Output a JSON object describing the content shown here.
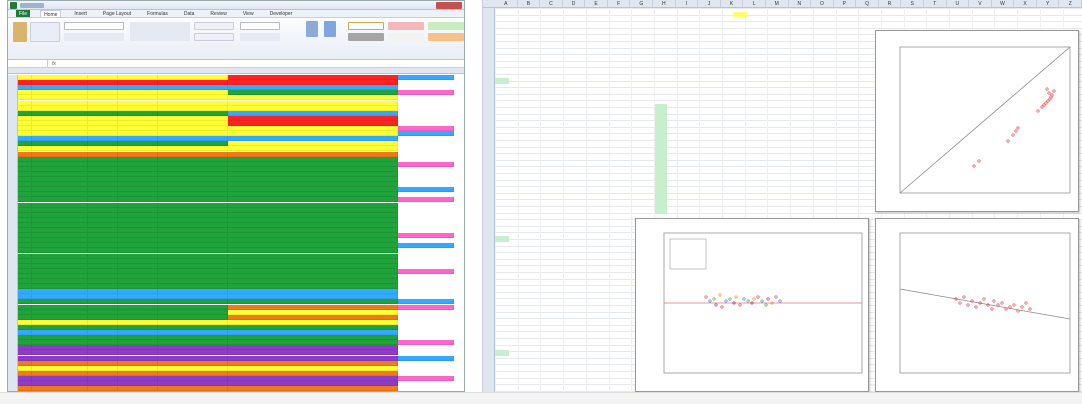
{
  "left": {
    "window_title": "",
    "ribbon_tabs": [
      "File",
      "Home",
      "Insert",
      "Page Layout",
      "Formulas",
      "Data",
      "Review",
      "View",
      "Developer"
    ],
    "active_tab": 1,
    "colors": {
      "green": "#1fa33a",
      "yellow": "#ffff33",
      "red": "#ff2222",
      "blue": "#33aaff",
      "purple": "#8e3cc7",
      "orange": "#f07a1a",
      "pink": "#ff66cc",
      "ribbon_style_red": "#f4b8b8",
      "ribbon_style_green": "#c8eec0"
    }
  },
  "right": {
    "cell_title": "",
    "column_letters": [
      "A",
      "B",
      "C",
      "D",
      "E",
      "F",
      "G",
      "H",
      "I",
      "J",
      "K",
      "L",
      "M",
      "N",
      "O",
      "P",
      "Q",
      "R",
      "S",
      "T",
      "U",
      "V",
      "W",
      "X",
      "Y",
      "Z"
    ],
    "charts": [
      {
        "title": "",
        "x_label": "",
        "y_label": "",
        "type": "scatter"
      },
      {
        "title": "",
        "x_label": "",
        "y_label": "",
        "type": "scatter"
      },
      {
        "title": "",
        "x_label": "",
        "y_label": "",
        "type": "scatter"
      }
    ],
    "colors": {
      "highlight_green": "#c6efce",
      "highlight_yellow": "#ffff66",
      "chart_point": "#e53935",
      "chart_line": "#888888"
    }
  }
}
